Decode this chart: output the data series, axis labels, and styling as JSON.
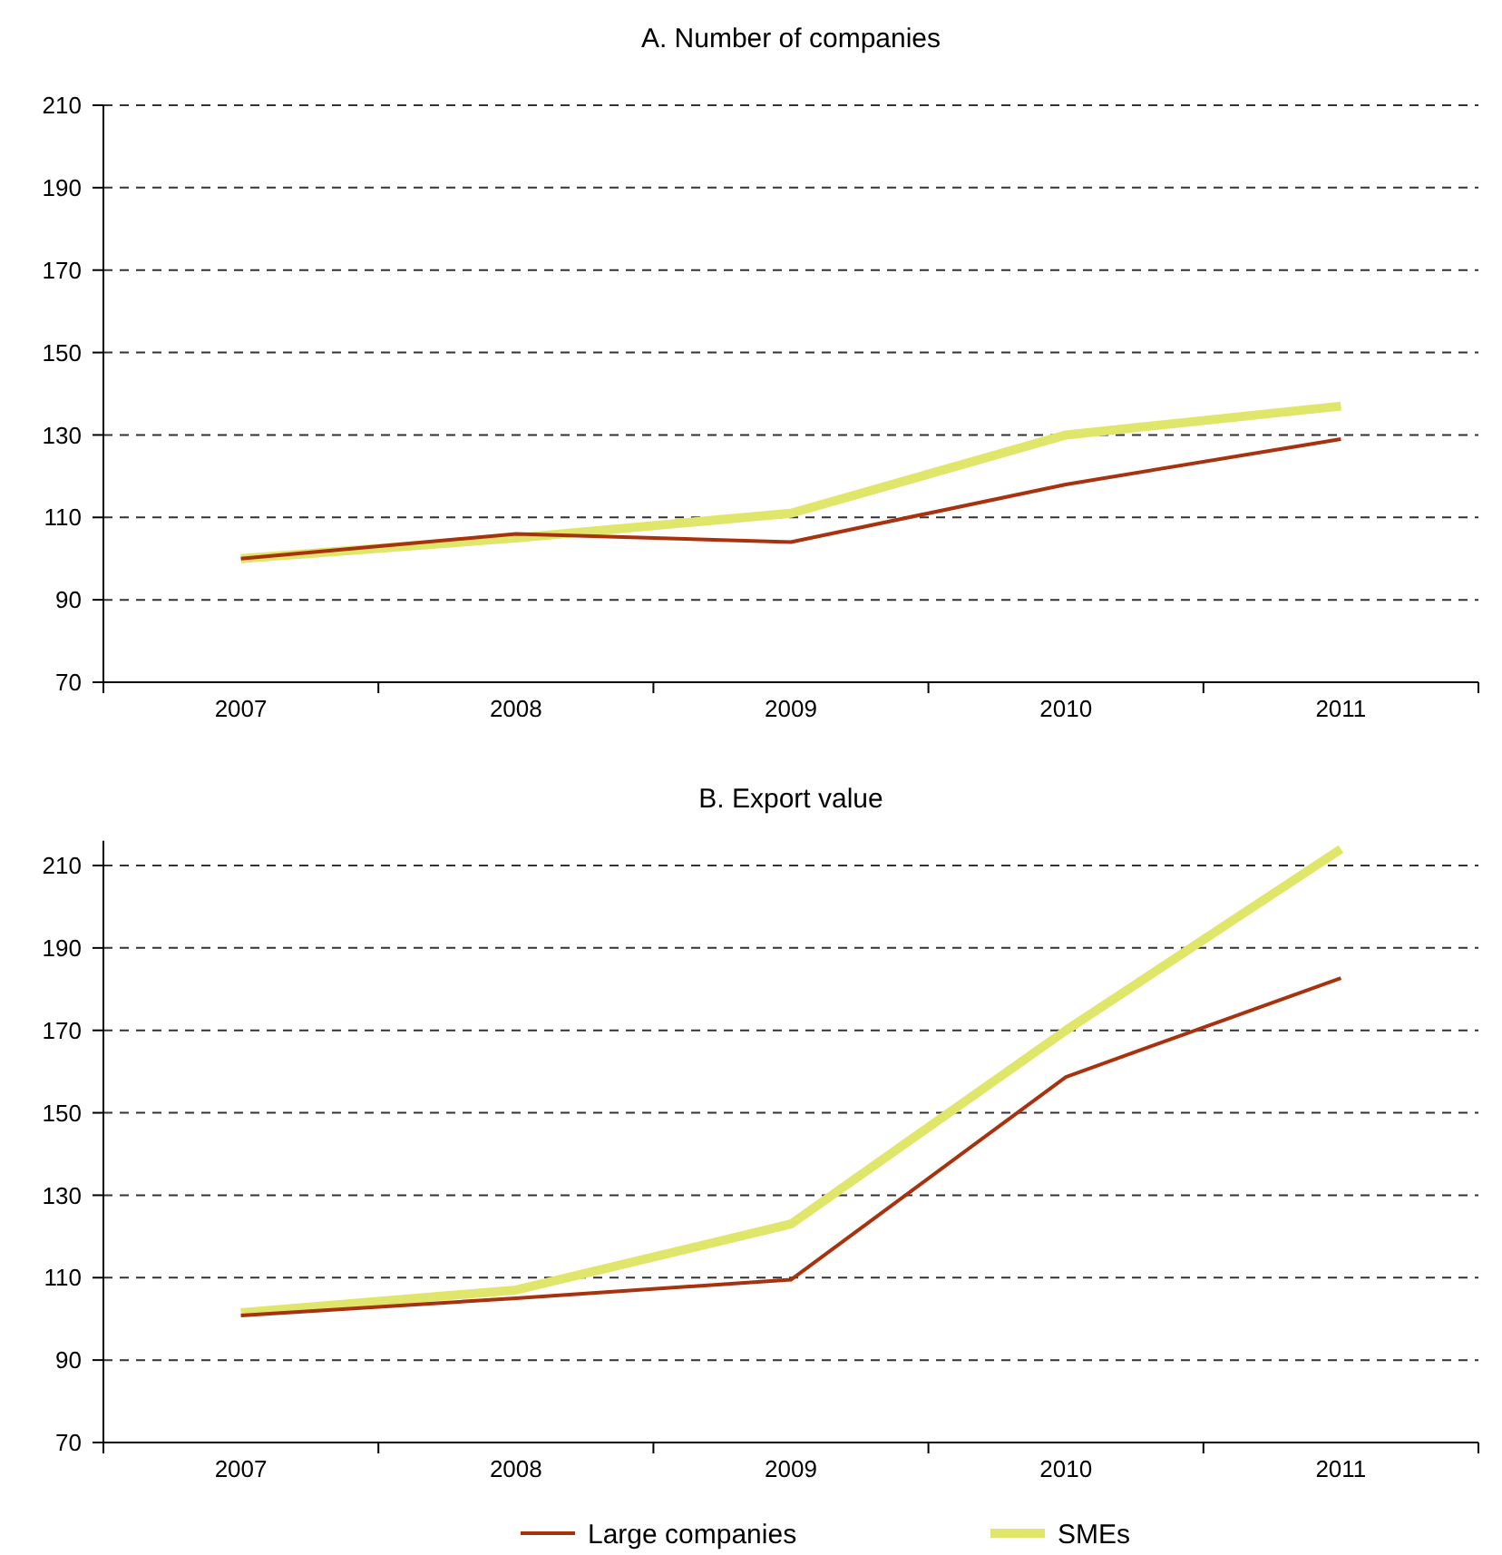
{
  "chart_data": [
    {
      "type": "line",
      "title": "A. Number of companies",
      "categories": [
        "2007",
        "2008",
        "2009",
        "2010",
        "2011"
      ],
      "series": [
        {
          "color": "#a8320e",
          "values": [
            100,
            106,
            104,
            118,
            129
          ]
        },
        {
          "color": "#e0e66a",
          "values": [
            100,
            105,
            111,
            130,
            137
          ]
        }
      ],
      "ylim": [
        70,
        210
      ],
      "yticks": [
        70,
        90,
        110,
        130,
        150,
        170,
        190,
        210
      ],
      "grid": "y"
    },
    {
      "type": "line",
      "title": "B. Export value",
      "categories": [
        "2007",
        "2008",
        "2009",
        "2010",
        "2011"
      ],
      "series": [
        {
          "name": "Large companies",
          "color": "#a8320e",
          "values": [
            100.8,
            105,
            109.5,
            158.7,
            182.7
          ]
        },
        {
          "name": "SMEs",
          "color": "#e0e66a",
          "values": [
            101.5,
            107,
            123,
            170,
            214
          ]
        }
      ],
      "ylim": [
        70,
        216
      ],
      "yticks": [
        70,
        90,
        110,
        130,
        150,
        170,
        190,
        210
      ],
      "grid": "y",
      "legend": "bottom"
    }
  ]
}
